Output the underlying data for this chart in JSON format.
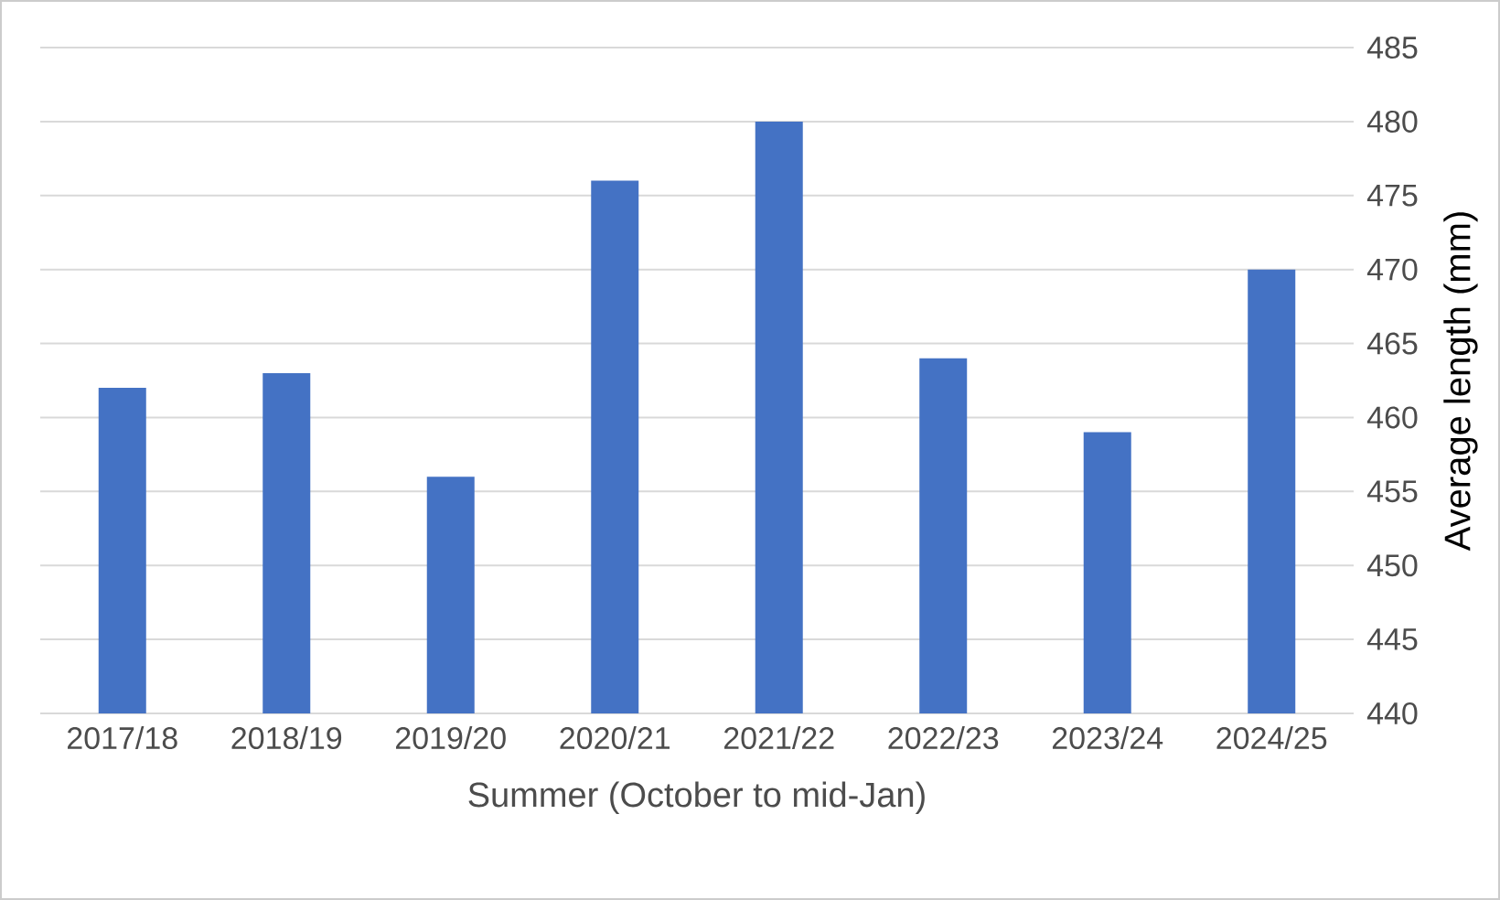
{
  "chart_data": {
    "type": "bar",
    "xlabel": "Summer (October to mid-Jan)",
    "ylabel": "Average length (mm)",
    "categories": [
      "2017/18",
      "2018/19",
      "2019/20",
      "2020/21",
      "2021/22",
      "2022/23",
      "2023/24",
      "2024/25"
    ],
    "values": [
      462,
      463,
      456,
      476,
      480,
      464,
      459,
      470
    ],
    "color": "#4472c4",
    "ylim": [
      440,
      485
    ],
    "yticks": [
      440,
      445,
      450,
      455,
      460,
      465,
      470,
      475,
      480,
      485
    ],
    "grid": "y"
  }
}
